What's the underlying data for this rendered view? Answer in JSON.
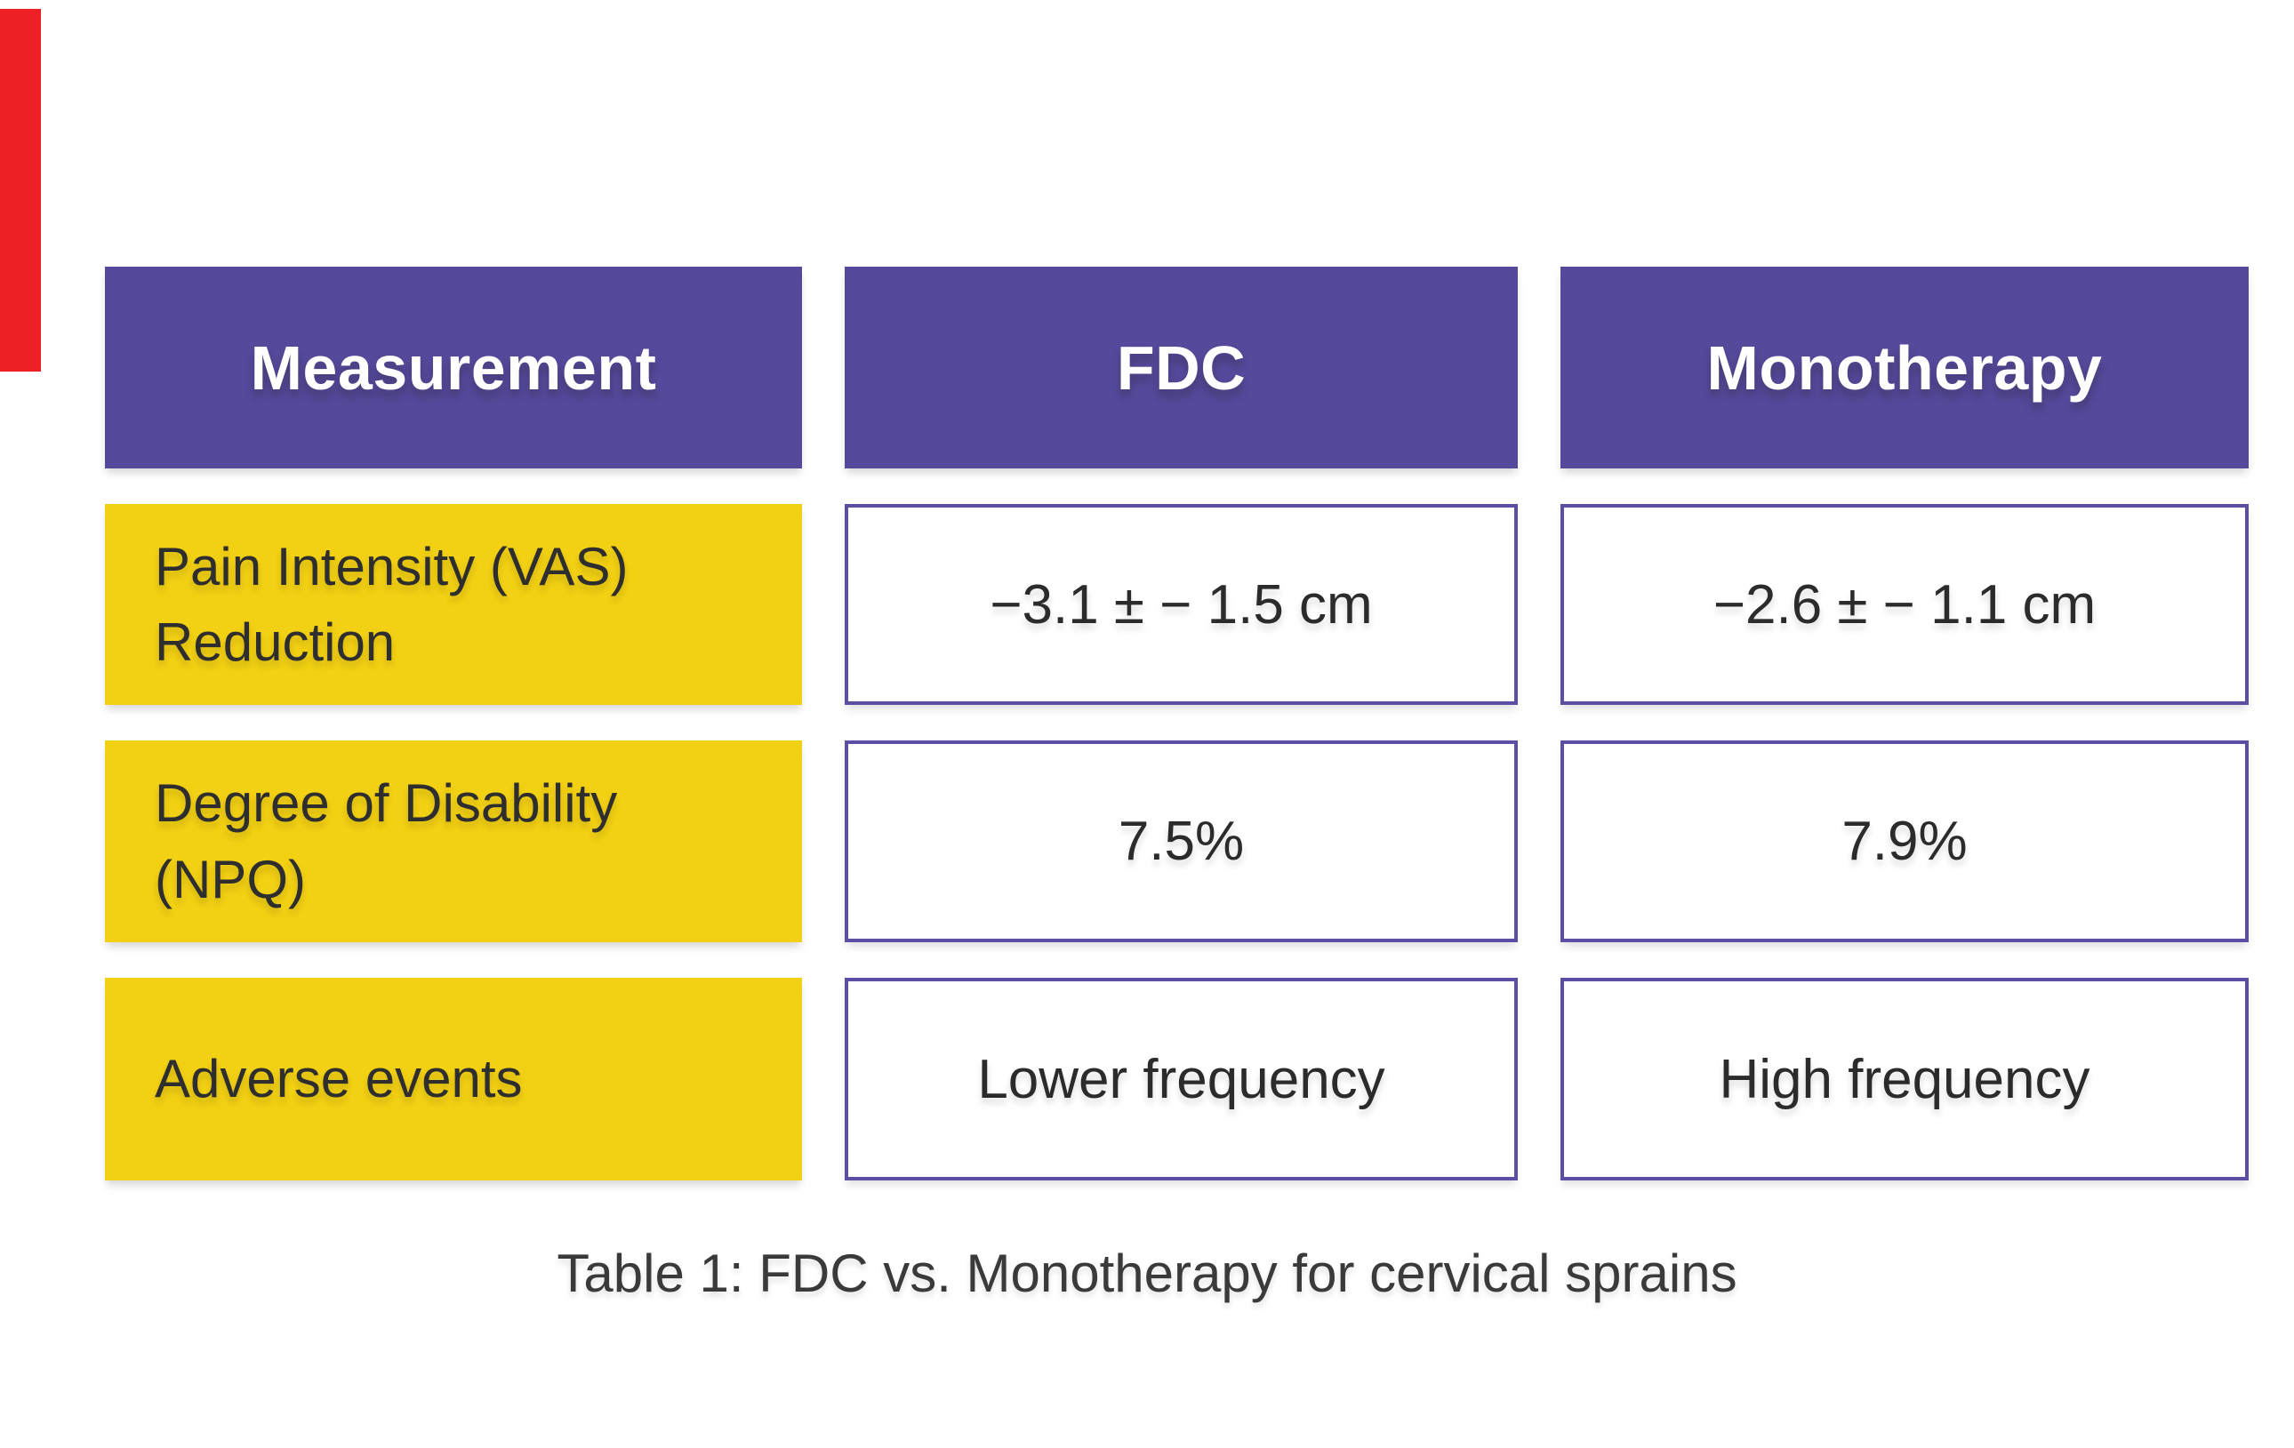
{
  "colors": {
    "header_purple": "#55499b",
    "cell_border_purple": "#5c4ea2",
    "label_yellow": "#f2d013",
    "accent_red": "#ec2026",
    "text_dark": "#2e2e2e",
    "text_white": "#ffffff"
  },
  "accent_bar": {
    "color": "#ec2026"
  },
  "table": {
    "headers": [
      {
        "label": "Measurement"
      },
      {
        "label": "FDC"
      },
      {
        "label": "Monotherapy"
      }
    ],
    "rows": [
      {
        "label": "Pain Intensity (VAS)\nReduction",
        "fdc": "−3.1 ± − 1.5 cm",
        "monotherapy": "−2.6 ± − 1.1 cm"
      },
      {
        "label": "Degree of Disability\n(NPQ)",
        "fdc": "7.5%",
        "monotherapy": "7.9%"
      },
      {
        "label": "Adverse events",
        "fdc": "Lower frequency",
        "monotherapy": "High frequency"
      }
    ],
    "caption": "Table 1: FDC vs. Monotherapy for cervical sprains"
  }
}
